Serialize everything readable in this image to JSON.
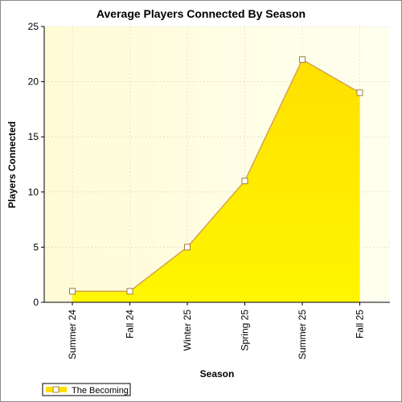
{
  "chart_data": {
    "type": "area",
    "title": "Average Players Connected By Season",
    "xlabel": "Season",
    "ylabel": "Players Connected",
    "categories": [
      "Summer 24",
      "Fall 24",
      "Winter 25",
      "Spring 25",
      "Summer 25",
      "Fall 25"
    ],
    "series": [
      {
        "name": "The Becoming",
        "values": [
          1,
          1,
          5,
          11,
          22,
          19
        ]
      }
    ],
    "ylim": [
      0,
      25
    ],
    "yticks": [
      0,
      5,
      10,
      15,
      20,
      25
    ],
    "grid": true,
    "legend": "bottom-left",
    "colors": {
      "fill_top": "#ffe000",
      "fill_bottom": "#fff600",
      "line": "#d4a64a",
      "marker_fill": "#ffffff",
      "marker_stroke": "#a08040",
      "plot_background_left": "#fffbd6",
      "plot_background_right": "#fffff0",
      "grid": "#c8c8a0",
      "axis": "#000000"
    }
  }
}
